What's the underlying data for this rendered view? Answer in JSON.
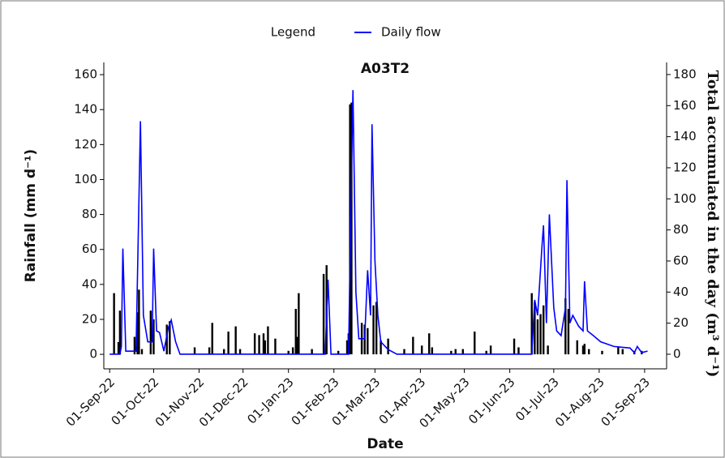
{
  "chart_data": {
    "type": "bar-line",
    "title": "A03T2",
    "legend_title": "Legend",
    "x_label": "Date",
    "y_label": "Rainfall (mm d⁻¹)",
    "y2_label": "Total accumulated in the day (m³ d⁻¹)",
    "xlim": [
      "2022-08-28",
      "2023-09-16"
    ],
    "xticks": [
      {
        "value": "2022-09-01",
        "label": "01-Sep-22"
      },
      {
        "value": "2022-10-01",
        "label": "01-Oct-22"
      },
      {
        "value": "2022-11-01",
        "label": "01-Nov-22"
      },
      {
        "value": "2022-12-01",
        "label": "01-Dec-22"
      },
      {
        "value": "2023-01-01",
        "label": "01-Jan-23"
      },
      {
        "value": "2023-02-01",
        "label": "01-Feb-23"
      },
      {
        "value": "2023-03-01",
        "label": "01-Mar-23"
      },
      {
        "value": "2023-04-01",
        "label": "01-Apr-23"
      },
      {
        "value": "2023-05-01",
        "label": "01-May-23"
      },
      {
        "value": "2023-06-01",
        "label": "01-Jun-23"
      },
      {
        "value": "2023-07-01",
        "label": "01-Jul-23"
      },
      {
        "value": "2023-08-01",
        "label": "01-Aug-23"
      },
      {
        "value": "2023-09-01",
        "label": "01-Sep-23"
      }
    ],
    "ylim": [
      -8.3,
      167
    ],
    "yticks": [
      0,
      20,
      40,
      60,
      80,
      100,
      120,
      140,
      160
    ],
    "y2lim": [
      -9.4,
      187.8
    ],
    "y2ticks": [
      0,
      20,
      40,
      60,
      80,
      100,
      120,
      140,
      160,
      180
    ],
    "series": [
      {
        "kind": "bar",
        "color": "#000000",
        "x": [
          "2022-09-04",
          "2022-09-07",
          "2022-09-08",
          "2022-09-18",
          "2022-09-20",
          "2022-09-21",
          "2022-09-23",
          "2022-09-29",
          "2022-10-01",
          "2022-10-10",
          "2022-10-12",
          "2022-10-29",
          "2022-11-08",
          "2022-11-10",
          "2022-11-18",
          "2022-11-21",
          "2022-11-26",
          "2022-11-29",
          "2022-12-09",
          "2022-12-12",
          "2022-12-15",
          "2022-12-16",
          "2022-12-18",
          "2022-12-23",
          "2023-01-01",
          "2023-01-04",
          "2023-01-06",
          "2023-01-07",
          "2023-01-08",
          "2023-01-17",
          "2023-01-25",
          "2023-01-27",
          "2023-02-04",
          "2023-02-10",
          "2023-02-11",
          "2023-02-12",
          "2023-02-13",
          "2023-02-20",
          "2023-02-22",
          "2023-02-24",
          "2023-02-28",
          "2023-03-02",
          "2023-03-05",
          "2023-03-10",
          "2023-03-21",
          "2023-03-27",
          "2023-04-02",
          "2023-04-07",
          "2023-04-09",
          "2023-04-22",
          "2023-04-25",
          "2023-04-30",
          "2023-05-08",
          "2023-05-16",
          "2023-05-19",
          "2023-06-04",
          "2023-06-07",
          "2023-06-16",
          "2023-06-18",
          "2023-06-20",
          "2023-06-22",
          "2023-06-24",
          "2023-06-27",
          "2023-07-09",
          "2023-07-11",
          "2023-07-17",
          "2023-07-21",
          "2023-07-22",
          "2023-07-25",
          "2023-08-03",
          "2023-08-14",
          "2023-08-17",
          "2023-08-25",
          "2023-08-30"
        ],
        "values": [
          35,
          7,
          25,
          10,
          24,
          37,
          3,
          25,
          20,
          17,
          19,
          4,
          4,
          18,
          3,
          13,
          16,
          3,
          12,
          11,
          12,
          8,
          16,
          9,
          2,
          4,
          26,
          10,
          35,
          3,
          46,
          51,
          2,
          8,
          12,
          143,
          144,
          18,
          17,
          15,
          28,
          30,
          8,
          9,
          3,
          10,
          5,
          12,
          4,
          2,
          3,
          3,
          13,
          2,
          5,
          9,
          4,
          35,
          30,
          20,
          23,
          28,
          5,
          32,
          26,
          8,
          5,
          6,
          3,
          2,
          4,
          3,
          2,
          2
        ]
      },
      {
        "kind": "line",
        "name": "Daily flow",
        "color": "#0000ff",
        "axis": "y2",
        "x": [
          "2022-09-01",
          "2022-09-08",
          "2022-09-09",
          "2022-09-10",
          "2022-09-12",
          "2022-09-19",
          "2022-09-22",
          "2022-09-24",
          "2022-09-27",
          "2022-09-30",
          "2022-10-01",
          "2022-10-03",
          "2022-10-05",
          "2022-10-08",
          "2022-10-11",
          "2022-10-13",
          "2022-10-16",
          "2022-10-19",
          "2023-01-26",
          "2023-01-28",
          "2023-01-30",
          "2023-02-11",
          "2023-02-12",
          "2023-02-14",
          "2023-02-16",
          "2023-02-18",
          "2023-02-22",
          "2023-02-24",
          "2023-02-26",
          "2023-02-27",
          "2023-03-01",
          "2023-03-03",
          "2023-03-05",
          "2023-03-10",
          "2023-03-16",
          "2023-06-16",
          "2023-06-18",
          "2023-06-20",
          "2023-06-23",
          "2023-06-24",
          "2023-06-26",
          "2023-06-28",
          "2023-07-01",
          "2023-07-03",
          "2023-07-06",
          "2023-07-09",
          "2023-07-10",
          "2023-07-12",
          "2023-07-14",
          "2023-07-18",
          "2023-07-21",
          "2023-07-22",
          "2023-07-24",
          "2023-07-28",
          "2023-08-02",
          "2023-08-11",
          "2023-08-22",
          "2023-08-25",
          "2023-08-27",
          "2023-08-30",
          "2023-09-03"
        ],
        "values": [
          0,
          0,
          5,
          68,
          2,
          2,
          150,
          25,
          8,
          8,
          68,
          15,
          14,
          2,
          17,
          22,
          8,
          0,
          0,
          48,
          0,
          0,
          60,
          170,
          40,
          10,
          10,
          54,
          25,
          148,
          60,
          25,
          8,
          3,
          0,
          0,
          35,
          25,
          70,
          83,
          20,
          90,
          30,
          15,
          12,
          30,
          112,
          20,
          25,
          18,
          15,
          47,
          15,
          12,
          8,
          5,
          4,
          1,
          5,
          1,
          2
        ]
      }
    ]
  }
}
